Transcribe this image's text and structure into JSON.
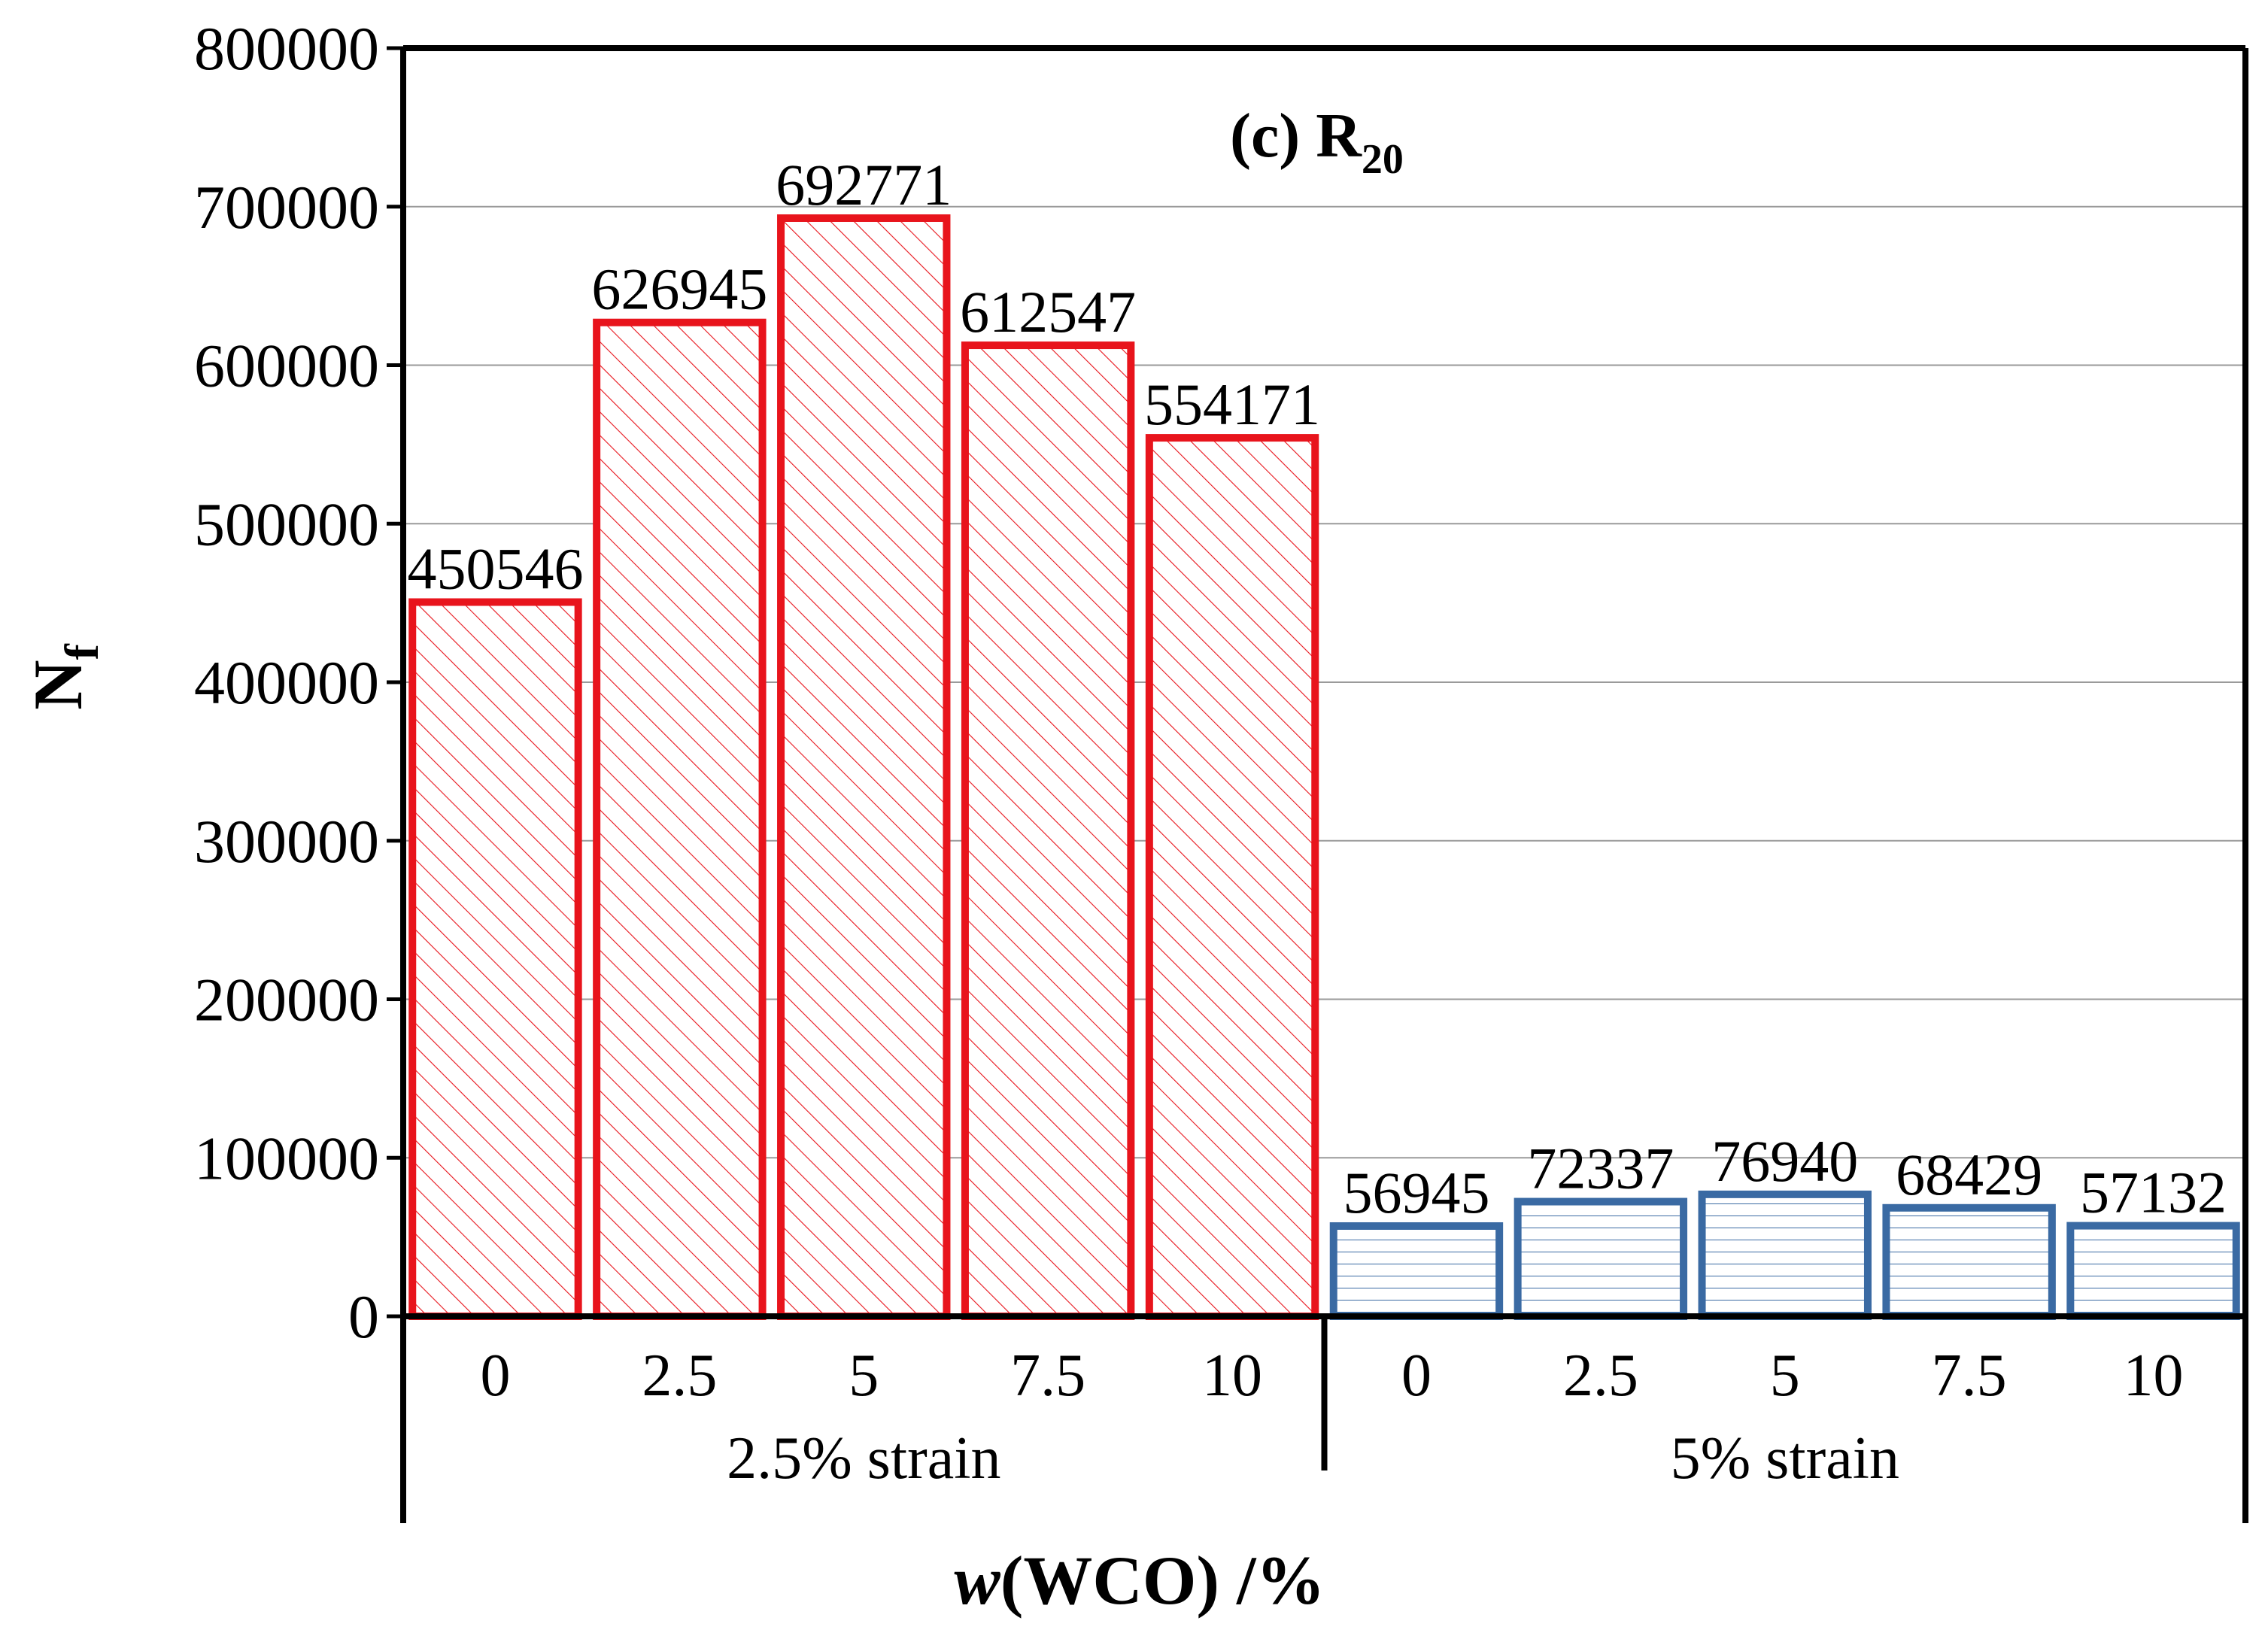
{
  "chart_data": {
    "type": "bar",
    "title": "(c) R",
    "title_subscript": "20",
    "ylabel": "N",
    "ylabel_subscript": "f",
    "xlabel_italic": "w",
    "xlabel_rest": "(WCO) /%",
    "ylim": [
      0,
      800000
    ],
    "yticks": [
      0,
      100000,
      200000,
      300000,
      400000,
      500000,
      600000,
      700000,
      800000
    ],
    "ytick_labels": [
      "0",
      "100000",
      "200000",
      "300000",
      "400000",
      "500000",
      "600000",
      "700000",
      "800000"
    ],
    "grid": true,
    "groups": [
      {
        "name": "2.5% strain",
        "color": "#e8141c",
        "pattern": "diagonal-hatch",
        "categories": [
          "0",
          "2.5",
          "5",
          "7.5",
          "10"
        ],
        "values": [
          450546,
          626945,
          692771,
          612547,
          554171
        ],
        "value_labels": [
          "450546",
          "626945",
          "692771",
          "612547",
          "554171"
        ]
      },
      {
        "name": "5% strain",
        "color": "#3a6aa3",
        "pattern": "horizontal-lines",
        "categories": [
          "0",
          "2.5",
          "5",
          "7.5",
          "10"
        ],
        "values": [
          56945,
          72337,
          76940,
          68429,
          57132
        ],
        "value_labels": [
          "56945",
          "72337",
          "76940",
          "68429",
          "57132"
        ]
      }
    ]
  }
}
